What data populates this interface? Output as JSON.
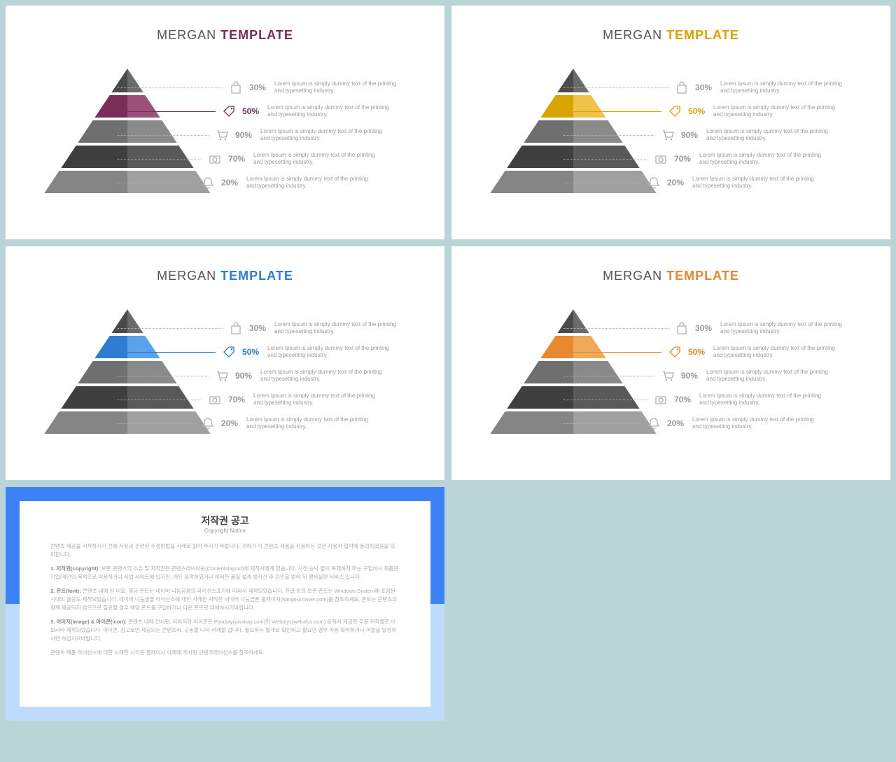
{
  "title": {
    "a": "MERGAN",
    "b": "TEMPLATE"
  },
  "variants": [
    {
      "accent": "#7a2e55",
      "title_b_color": "#7a2e55",
      "accent_light": "#9c4f77"
    },
    {
      "accent": "#d9a400",
      "title_b_color": "#d9a400",
      "accent_light": "#f0c24a"
    },
    {
      "accent": "#2d7dd2",
      "title_b_color": "#2d7dd2",
      "accent_light": "#5ba3e8"
    },
    {
      "accent": "#e6892f",
      "title_b_color": "#e6892f",
      "accent_light": "#f0a85b"
    }
  ],
  "pyramid": {
    "levels": [
      {
        "left": "#4a4a4a",
        "right": "#6b6b6b"
      },
      {
        "left": "ACCENT",
        "right": "ACCENT_L"
      },
      {
        "left": "#6f6f6f",
        "right": "#8a8a8a"
      },
      {
        "left": "#3f3f3f",
        "right": "#595959"
      },
      {
        "left": "#858585",
        "right": "#a0a0a0"
      }
    ],
    "gap_color": "#ffffff"
  },
  "rows": [
    {
      "icon": "bag",
      "pct": "30%",
      "txt": "Lorem Ipsum is simply dummy text of the printing and typesetting industry.",
      "hl": false,
      "leader": 150
    },
    {
      "icon": "tag",
      "pct": "50%",
      "txt": "Lorem Ipsum is simply dummy text of the printing and typesetting industry.",
      "hl": true,
      "leader": 140
    },
    {
      "icon": "cart",
      "pct": "90%",
      "txt": "Lorem Ipsum is simply dummy text of the printing and typesetting industry.",
      "hl": false,
      "leader": 130
    },
    {
      "icon": "camera",
      "pct": "70%",
      "txt": "Lorem Ipsum is simply dummy text of the printing and typesetting industry.",
      "hl": false,
      "leader": 120
    },
    {
      "icon": "bell",
      "pct": "20%",
      "txt": "Lorem Ipsum is simply dummy text of the printing and typesetting industry.",
      "hl": false,
      "leader": 110
    }
  ],
  "copyright": {
    "title": "저작권 공고",
    "subtitle": "Copyright Notice",
    "p0": "콘텐츠 제공을 시작하시기 전에 사용과 관련된 수정방법을 사례로 읽어 주시기 바랍니다. 귀하가 이 콘텐츠 제품을 사용하는 것은 사용자 협약에 동의하였음을 의미합니다.",
    "p1_label": "1. 저작권(copyright):",
    "p1": " 보존 콘텐츠의 소유 및 저작권은 콘텐츠레이아웃(Contentslayout)에 제작사에게 있습니다. 사전 승낙 없이 복제하지 마는 구입하시 제품은 기업/개인의 목적으로 이용하거나 사업 사이트에 있지만, 개인 음악하였거나 이러한 품질 설계 빙자신 후 승인을 받아 뒤 행사실현 서비스 입니다.",
    "p2_label": "2. 폰트(font):",
    "p2": " 콘텐츠 내에 된 미묘, 영금 폰트는 네이버 나눔금씀의 라이선스표기에 따라서 제작되었습니다. 한글 외의 보존 폰트는 Windows System에 포함된 시대의 글씀도 제작되었습니다. 네이버 나눔글꼴 라이선스에 대한 사례한 시작은 네이버 나눔금폰 홈페이지(hangeul.naver.com)를 참조하세요. 폰트는 콘텐츠의 함께 제공되지 않으므로 필요할 경우 해당 폰트를 구입하거나 다은 폰트로 대체하시기바랍니다.",
    "p3_label": "3. 이미지(image) & 아이콘(icon):",
    "p3": " 콘텐츠 내에 전시된, 이미지와 아이콘은 Pixabay(pixabay.com)와 Webalys(webalys.com) 등에서 제공한 무료 저작물로 이보사아 제작되었습니다. 아이콘. 참고로만 제공되는 콘텐츠라. 구동할 나서 삭제할 겁니다. 필요하시 별개로 확인하고 필요한 명부 아용 확여하거나 이들을 달성하시면 하십시오바랍니다.",
    "p4": "콘텐츠 제품 라이선스에 대한 사례한 시각은 홈페이시 아래에 게시된 근텐코라이선스를 참조하세요."
  }
}
